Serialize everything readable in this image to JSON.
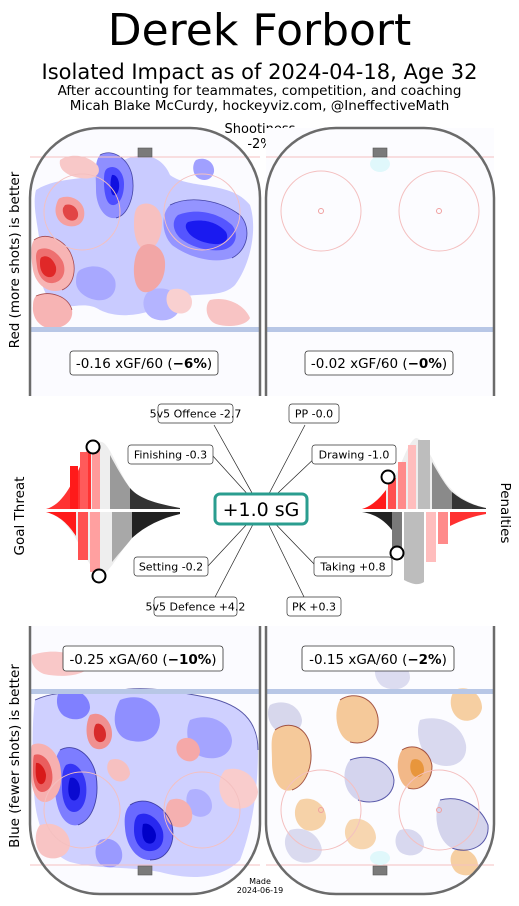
{
  "header": {
    "title": "Derek Forbort",
    "subtitle": "Isolated Impact as of 2024-04-18, Age 32",
    "note_line1": "After accounting for teammates, competition, and coaching",
    "note_line2": "Micah Blake McCurdy, hockeyviz.com, @IneffectiveMath"
  },
  "shootiness": {
    "label": "Shootiness",
    "value": "-2%"
  },
  "side_labels": {
    "top_left": "Red (more shots) is better",
    "bottom_left": "Blue (fewer shots) is better",
    "goal_threat": "Goal Threat",
    "penalties": "Penalties"
  },
  "colors": {
    "more_shots": "#d62728",
    "fewer_shots": "#1a1aff",
    "pk_fill": "#f5c99a",
    "accent_teal": "#2a9d8f",
    "rink_line": "#6b6b6b",
    "blue_line": "#b8c7e6"
  },
  "chart_data": [
    {
      "type": "heatmap",
      "panel": "5v5 offence",
      "label_value": "-0.16 xGF/60 (",
      "label_pct": "−6%",
      "label_close": ")"
    },
    {
      "type": "heatmap",
      "panel": "powerplay offence",
      "label_value": "-0.02 xGF/60 (",
      "label_pct": "−0%",
      "label_close": ")"
    },
    {
      "type": "heatmap",
      "panel": "5v5 defence",
      "label_value": "-0.25 xGA/60 (",
      "label_pct": "−10%",
      "label_close": ")"
    },
    {
      "type": "heatmap",
      "panel": "penalty kill",
      "label_value": "-0.15 xGA/60 (",
      "label_pct": "−2%",
      "label_close": ")"
    },
    {
      "type": "radial",
      "center_label": "+1.0 sG",
      "components": [
        {
          "name": "5v5 Offence",
          "label": "5v5 Offence -2.7",
          "value": -2.7
        },
        {
          "name": "PP",
          "label": "PP -0.0",
          "value": 0.0
        },
        {
          "name": "Finishing",
          "label": "Finishing -0.3",
          "value": -0.3
        },
        {
          "name": "Drawing",
          "label": "Drawing -1.0",
          "value": -1.0
        },
        {
          "name": "Setting",
          "label": "Setting -0.2",
          "value": -0.2
        },
        {
          "name": "Taking",
          "label": "Taking +0.8",
          "value": 0.8
        },
        {
          "name": "5v5 Defence",
          "label": "5v5 Defence +4.2",
          "value": 4.2
        },
        {
          "name": "PK",
          "label": "PK +0.3",
          "value": 0.3
        }
      ]
    }
  ],
  "footer": {
    "made_label": "Made",
    "made_date": "2024-06-19"
  }
}
